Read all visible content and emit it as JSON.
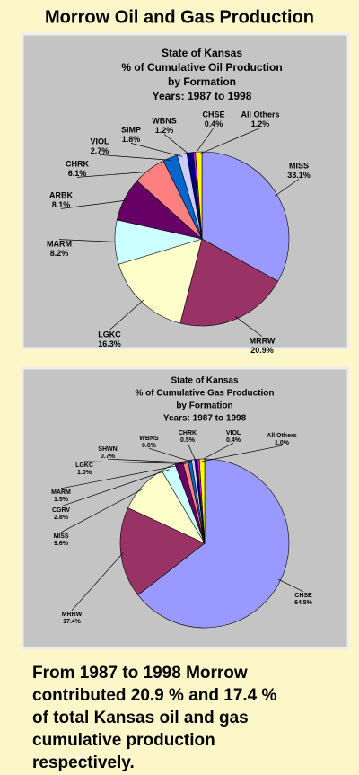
{
  "title": "Morrow Oil and Gas Production",
  "chart_data": [
    {
      "type": "pie",
      "title": [
        "State of Kansas",
        "% of Cumulative Oil Production",
        "by Formation",
        "Years: 1987 to 1998"
      ],
      "categories": [
        "MISS",
        "MRRW",
        "LGKC",
        "MARM",
        "ARBK",
        "CHRK",
        "VIOL",
        "SIMP",
        "WBNS",
        "CHSE",
        "All Others"
      ],
      "values": [
        33.1,
        20.9,
        16.3,
        8.2,
        8.1,
        6.1,
        2.7,
        1.8,
        1.2,
        0.4,
        1.2
      ],
      "value_labels": [
        "33.1%",
        "20.9%",
        "16.3%",
        "8.2%",
        "8.1%",
        "6.1%",
        "2.7%",
        "1.8%",
        "1.2%",
        "0.4%",
        "1.2%"
      ],
      "colors": [
        "#9999ff",
        "#993366",
        "#ffffcc",
        "#ccffff",
        "#660066",
        "#ff8080",
        "#0066cc",
        "#ccccff",
        "#000080",
        "#ff00ff",
        "#ffff00"
      ]
    },
    {
      "type": "pie",
      "title": [
        "State of Kansas",
        "% of Cumulative Gas Production",
        "by Formation",
        "Years: 1987 to 1998"
      ],
      "categories": [
        "CHSE",
        "MRRW",
        "MISS",
        "CGRV",
        "MARM",
        "LGKC",
        "SHWN",
        "WBNS",
        "CHRK",
        "VIOL",
        "All Others"
      ],
      "values": [
        64.5,
        17.4,
        9.6,
        2.8,
        1.5,
        1.0,
        0.7,
        0.6,
        0.5,
        0.4,
        1.0
      ],
      "value_labels": [
        "64.5%",
        "17.4%",
        "9.6%",
        "2.8%",
        "1.5%",
        "1.0%",
        "0.7%",
        "0.6%",
        "0.5%",
        "0.4%",
        "1.0%"
      ],
      "colors": [
        "#9999ff",
        "#993366",
        "#ffffcc",
        "#ccffff",
        "#660066",
        "#ff8080",
        "#0066cc",
        "#ccccff",
        "#000080",
        "#ff00ff",
        "#ffff00"
      ]
    }
  ],
  "caption": [
    "From 1987 to 1998 Morrow",
    "contributed 20.9 % and 17.4 %",
    "of total Kansas oil and gas",
    "cumulative production",
    "respectively."
  ]
}
